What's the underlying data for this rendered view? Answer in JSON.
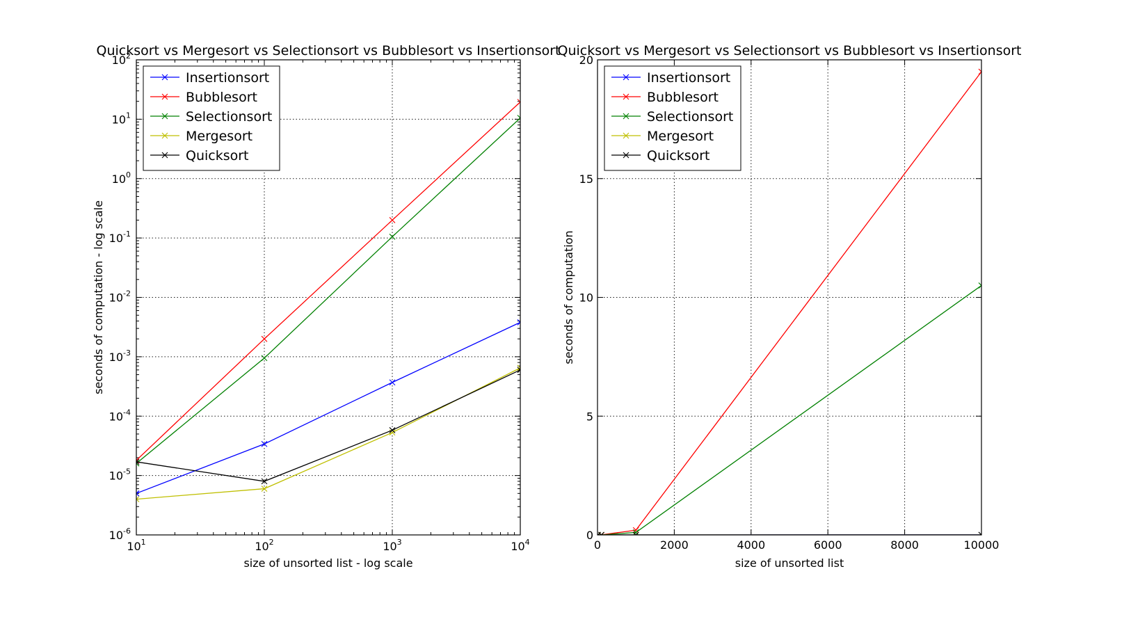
{
  "chart_data": [
    {
      "type": "line",
      "title": "Quicksort vs Mergesort vs Selectionsort vs Bubblesort vs Insertionsort",
      "xlabel": "size of unsorted list - log scale",
      "ylabel": "seconds of computation - log scale",
      "xscale": "log",
      "yscale": "log",
      "xlim": [
        10,
        10000
      ],
      "ylim": [
        1e-06,
        100
      ],
      "xticks": [
        {
          "mantissa": "10",
          "exp": "1"
        },
        {
          "mantissa": "10",
          "exp": "2"
        },
        {
          "mantissa": "10",
          "exp": "3"
        },
        {
          "mantissa": "10",
          "exp": "4"
        }
      ],
      "yticks": [
        {
          "mantissa": "10",
          "exp": "-6"
        },
        {
          "mantissa": "10",
          "exp": "-5"
        },
        {
          "mantissa": "10",
          "exp": "-4"
        },
        {
          "mantissa": "10",
          "exp": "-3"
        },
        {
          "mantissa": "10",
          "exp": "-2"
        },
        {
          "mantissa": "10",
          "exp": "-1"
        },
        {
          "mantissa": "10",
          "exp": "0"
        },
        {
          "mantissa": "10",
          "exp": "1"
        },
        {
          "mantissa": "10",
          "exp": "2"
        }
      ],
      "grid": true,
      "legend_position": "top-left",
      "x": [
        10,
        100,
        1000,
        10000
      ],
      "series": [
        {
          "name": "Insertionsort",
          "color": "#0000ff",
          "values": [
            5e-06,
            3.4e-05,
            0.00037,
            0.0038
          ]
        },
        {
          "name": "Bubblesort",
          "color": "#ff0000",
          "values": [
            1.8e-05,
            0.002,
            0.2,
            19.5
          ]
        },
        {
          "name": "Selectionsort",
          "color": "#008000",
          "values": [
            1.6e-05,
            0.00095,
            0.105,
            10.5
          ]
        },
        {
          "name": "Mergesort",
          "color": "#bfbf00",
          "values": [
            4e-06,
            6e-06,
            5.3e-05,
            0.00065
          ]
        },
        {
          "name": "Quicksort",
          "color": "#000000",
          "values": [
            1.7e-05,
            8e-06,
            5.8e-05,
            0.0006
          ]
        }
      ]
    },
    {
      "type": "line",
      "title": "Quicksort vs Mergesort vs Selectionsort vs Bubblesort vs Insertionsort",
      "xlabel": "size of unsorted list",
      "ylabel": "seconds of computation",
      "xscale": "linear",
      "yscale": "linear",
      "xlim": [
        0,
        10000
      ],
      "ylim": [
        0,
        20
      ],
      "xticks": [
        "0",
        "2000",
        "4000",
        "6000",
        "8000",
        "10000"
      ],
      "yticks": [
        "0",
        "5",
        "10",
        "15",
        "20"
      ],
      "grid": true,
      "legend_position": "top-left",
      "x": [
        10,
        100,
        1000,
        10000
      ],
      "series": [
        {
          "name": "Insertionsort",
          "color": "#0000ff",
          "values": [
            5e-06,
            3.4e-05,
            0.00037,
            0.0038
          ]
        },
        {
          "name": "Bubblesort",
          "color": "#ff0000",
          "values": [
            1.8e-05,
            0.002,
            0.2,
            19.5
          ]
        },
        {
          "name": "Selectionsort",
          "color": "#008000",
          "values": [
            1.6e-05,
            0.00095,
            0.105,
            10.5
          ]
        },
        {
          "name": "Mergesort",
          "color": "#bfbf00",
          "values": [
            4e-06,
            6e-06,
            5.3e-05,
            0.00065
          ]
        },
        {
          "name": "Quicksort",
          "color": "#000000",
          "values": [
            1.7e-05,
            8e-06,
            5.8e-05,
            0.0006
          ]
        }
      ]
    }
  ]
}
